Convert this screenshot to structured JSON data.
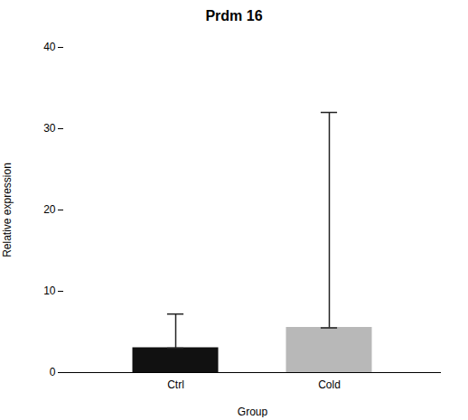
{
  "chart_data": {
    "type": "bar",
    "title": "Prdm 16",
    "xlabel": "Group",
    "ylabel": "Relative expression",
    "categories": [
      "Ctrl",
      "Cold"
    ],
    "values": [
      3.0,
      5.5
    ],
    "error_low": [
      3.0,
      5.5
    ],
    "error_high": [
      7.2,
      32.0
    ],
    "colors": [
      "#111111",
      "#b8b8b8"
    ],
    "ylim": [
      0,
      40
    ],
    "yticks": [
      0,
      10,
      20,
      30,
      40
    ],
    "grid": false
  }
}
